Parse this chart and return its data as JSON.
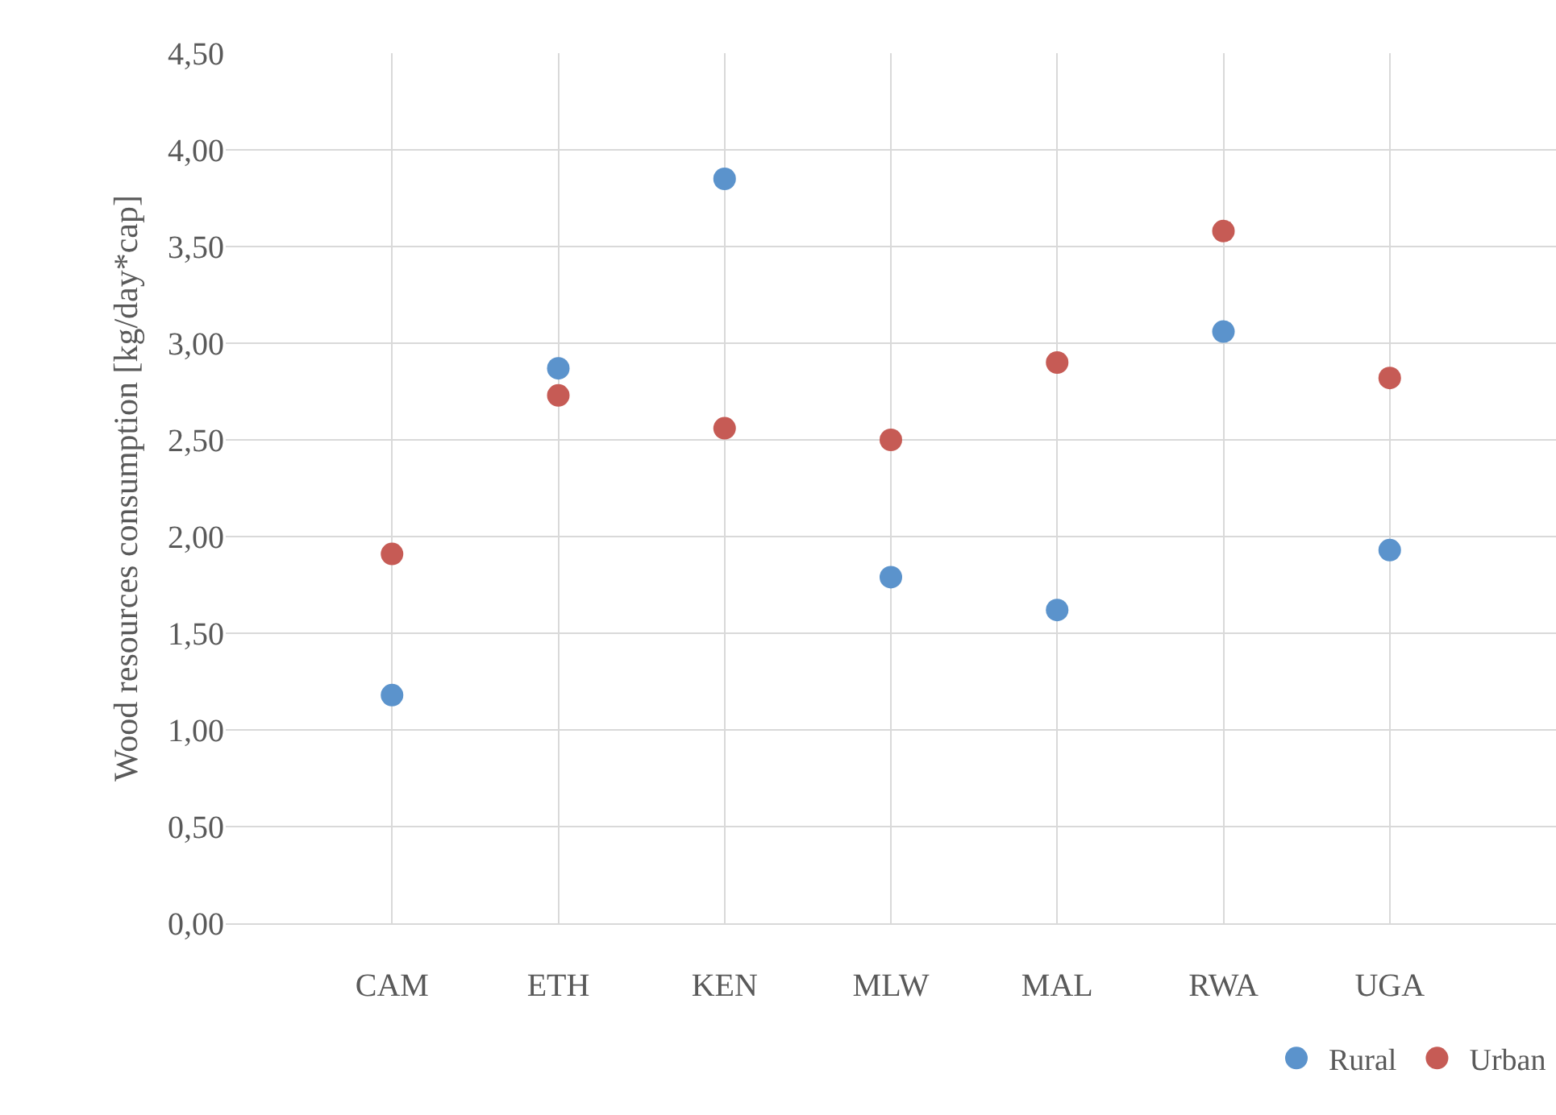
{
  "chart_data": {
    "type": "scatter",
    "ylabel": "Wood resources consumption [kg/day*cap]",
    "categories": [
      "CAM",
      "ETH",
      "KEN",
      "MLW",
      "MAL",
      "RWA",
      "UGA"
    ],
    "series": [
      {
        "name": "Rural",
        "color": "#5b93cc",
        "values": [
          1.18,
          2.87,
          3.85,
          1.79,
          1.62,
          3.06,
          1.93
        ]
      },
      {
        "name": "Urban",
        "color": "#c65b55",
        "values": [
          1.91,
          2.73,
          2.56,
          2.5,
          2.9,
          3.58,
          2.82
        ]
      }
    ],
    "ylim": [
      0,
      4.5
    ],
    "yticks": [
      {
        "value": 0,
        "label": "0,00"
      },
      {
        "value": 0.5,
        "label": "0,50"
      },
      {
        "value": 1,
        "label": "1,00"
      },
      {
        "value": 1.5,
        "label": "1,50"
      },
      {
        "value": 2,
        "label": "2,00"
      },
      {
        "value": 2.5,
        "label": "2,50"
      },
      {
        "value": 3,
        "label": "3,00"
      },
      {
        "value": 3.5,
        "label": "3,50"
      },
      {
        "value": 4,
        "label": "4,00"
      },
      {
        "value": 4.5,
        "label": "4,50"
      }
    ],
    "grid": true,
    "legend": "bottom right",
    "marker": "circle"
  }
}
